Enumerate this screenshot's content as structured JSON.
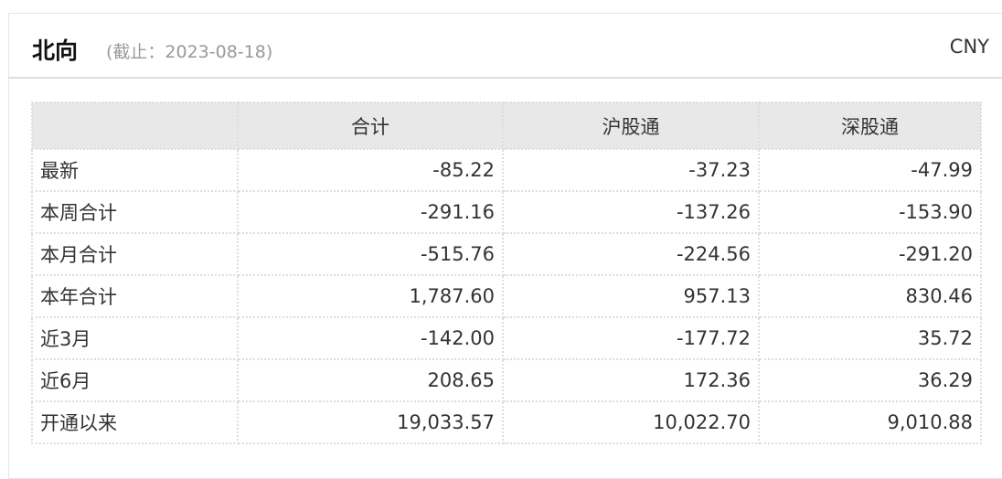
{
  "title": "北向",
  "date_note": "(截止：2023-08-18)",
  "currency": "CNY",
  "columns": [
    "",
    "合计",
    "沪股通",
    "深股通"
  ],
  "rows": [
    {
      "label": "最新",
      "values": [
        "-85.22",
        "-37.23",
        "-47.99"
      ]
    },
    {
      "label": "本周合计",
      "values": [
        "-291.16",
        "-137.26",
        "-153.90"
      ]
    },
    {
      "label": "本月合计",
      "values": [
        "-515.76",
        "-224.56",
        "-291.20"
      ]
    },
    {
      "label": "本年合计",
      "values": [
        "1,787.60",
        "957.13",
        "830.46"
      ]
    },
    {
      "label": "近3月",
      "values": [
        "-142.00",
        "-177.72",
        "35.72"
      ]
    },
    {
      "label": "近6月",
      "values": [
        "208.65",
        "172.36",
        "36.29"
      ]
    },
    {
      "label": "开通以来",
      "values": [
        "19,033.57",
        "10,022.70",
        "9,010.88"
      ]
    }
  ]
}
